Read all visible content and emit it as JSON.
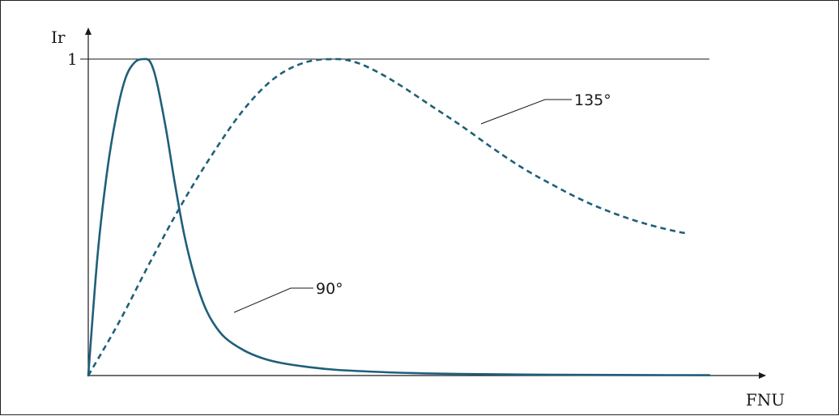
{
  "chart_data": {
    "type": "line",
    "ylabel": "Ir",
    "xlabel": "FNU",
    "yticks": [
      {
        "value": 1,
        "label": "1"
      }
    ],
    "ylim": [
      0,
      1
    ],
    "xlim": [
      0,
      10
    ],
    "grid": false,
    "reference_line": {
      "y": 1,
      "x_end": 10
    },
    "series": [
      {
        "name": "90°",
        "style": "solid",
        "color": "#1f5f7a",
        "x": [
          0,
          0.15,
          0.3,
          0.45,
          0.6,
          0.75,
          0.9,
          1.0,
          1.1,
          1.25,
          1.4,
          1.55,
          1.7,
          1.85,
          2.0,
          2.2,
          2.5,
          2.8,
          3.1,
          3.5,
          4.0,
          5.0,
          6.0,
          7.0,
          8.0,
          9.0,
          10.0
        ],
        "y": [
          0,
          0.38,
          0.64,
          0.82,
          0.94,
          0.99,
          1.0,
          0.99,
          0.93,
          0.78,
          0.6,
          0.44,
          0.32,
          0.23,
          0.17,
          0.12,
          0.08,
          0.055,
          0.04,
          0.028,
          0.018,
          0.009,
          0.005,
          0.003,
          0.002,
          0.0015,
          0.001
        ]
      },
      {
        "name": "135°",
        "style": "dashed",
        "color": "#1f5f7a",
        "x": [
          0,
          0.5,
          1.0,
          1.5,
          2.0,
          2.5,
          3.0,
          3.5,
          4.0,
          4.3,
          4.6,
          5.0,
          5.5,
          6.0,
          6.5,
          7.0,
          7.5,
          8.0,
          8.5,
          9.0,
          9.5,
          9.65
        ],
        "y": [
          0,
          0.17,
          0.36,
          0.54,
          0.7,
          0.84,
          0.94,
          0.99,
          1.0,
          0.99,
          0.965,
          0.92,
          0.855,
          0.79,
          0.72,
          0.655,
          0.6,
          0.55,
          0.51,
          0.478,
          0.454,
          0.45
        ]
      }
    ],
    "annotations": [
      {
        "text": "90°",
        "series": "90°"
      },
      {
        "text": "135°",
        "series": "135°"
      }
    ]
  }
}
